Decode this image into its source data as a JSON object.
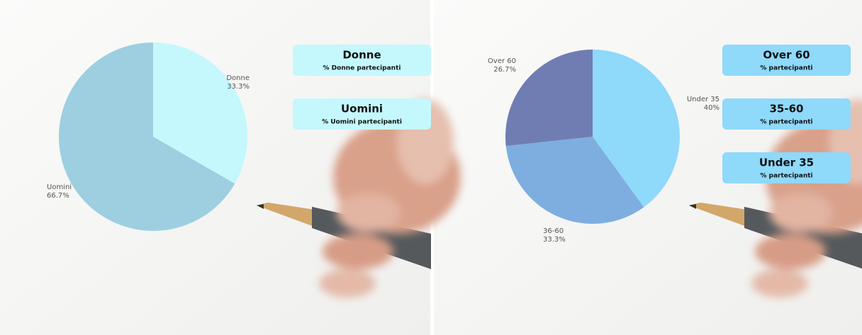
{
  "chart_data": [
    {
      "type": "pie",
      "categories": [
        "Donne",
        "Uomini"
      ],
      "values": [
        33.3,
        66.7
      ],
      "value_labels": [
        "33.3%",
        "66.7%"
      ],
      "colors": [
        "#c4f8fd",
        "#9dcfe1"
      ],
      "cards": [
        {
          "title": "Donne",
          "subtitle": "% Donne partecipanti"
        },
        {
          "title": "Uomini",
          "subtitle": "% Uomini partecipanti"
        }
      ],
      "card_color": "#c4f8fd"
    },
    {
      "type": "pie",
      "categories": [
        "Under 35",
        "36-60",
        "Over 60"
      ],
      "values": [
        40,
        33.3,
        26.7
      ],
      "value_labels": [
        "40%",
        "33.3%",
        "26.7%"
      ],
      "colors": [
        "#8fd9fa",
        "#7eaedf",
        "#6f7db3"
      ],
      "cards": [
        {
          "title": "Over 60",
          "subtitle": "% partecipanti"
        },
        {
          "title": "35-60",
          "subtitle": "% partecipanti"
        },
        {
          "title": "Under 35",
          "subtitle": "% partecipanti"
        }
      ],
      "card_color": "#8fd9fa"
    }
  ]
}
